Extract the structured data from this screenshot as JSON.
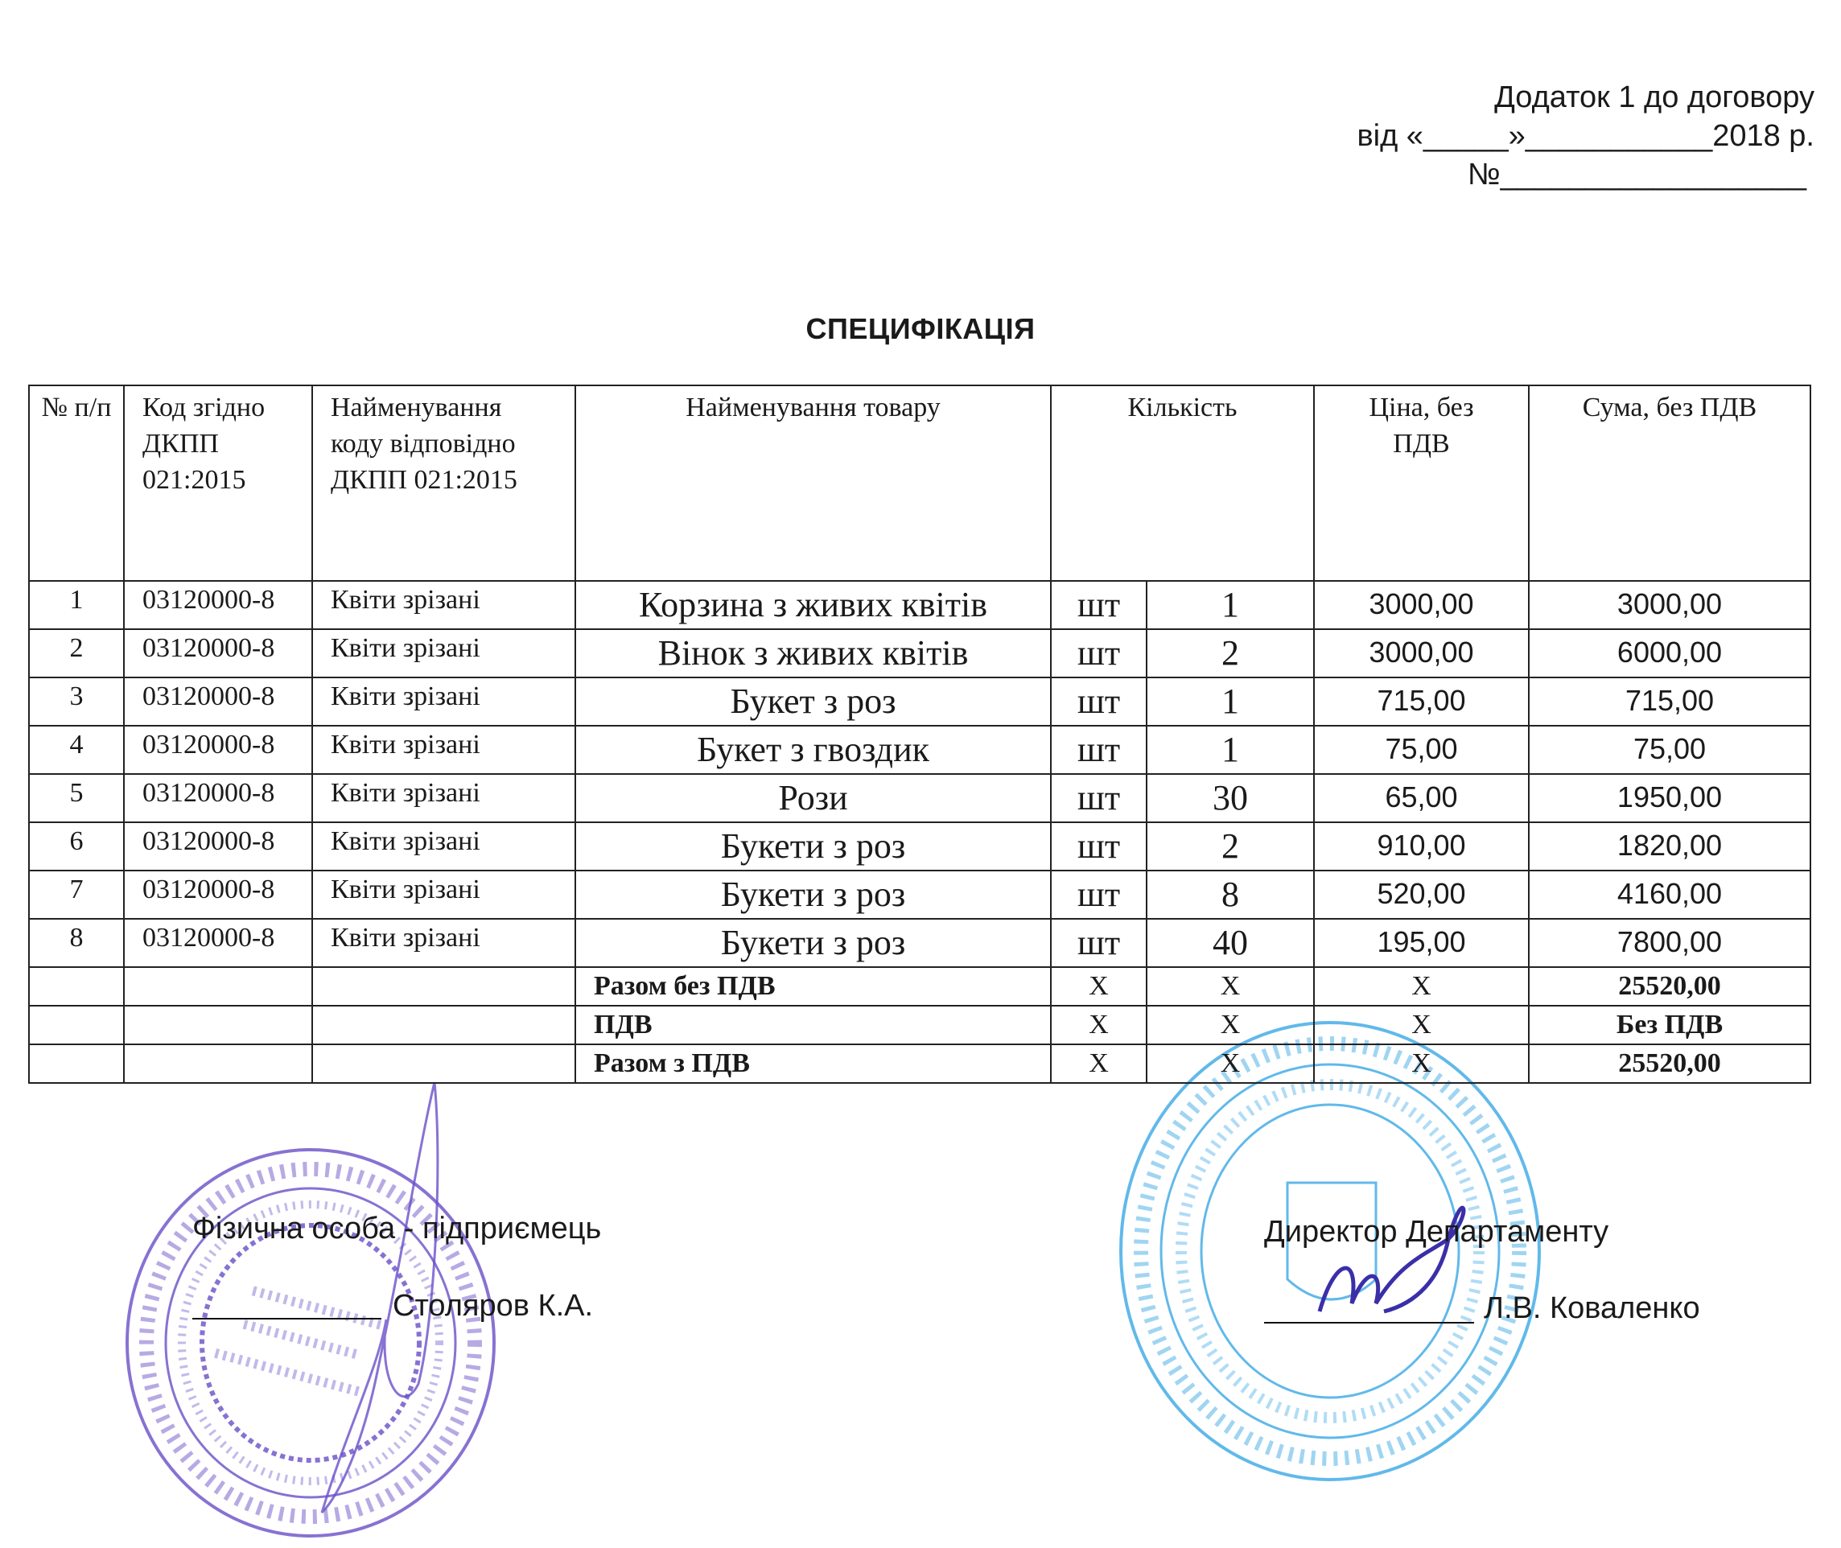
{
  "header": {
    "line1": "Додаток 1 до договору",
    "line2": "від «_____»___________2018 р.",
    "line3": "№__________________"
  },
  "title": "СПЕЦИФІКАЦІЯ",
  "table": {
    "columns": [
      "№ п/п",
      "Код згідно ДКПП 021:2015",
      "Найменування коду відповідно ДКПП 021:2015",
      "Найменування товару",
      "Кількість",
      "Ціна, без ПДВ",
      "Сума, без ПДВ"
    ],
    "rows": [
      {
        "n": "1",
        "code": "03120000-8",
        "code_name": "Квіти зрізані",
        "name": "Корзина з живих квітів",
        "unit": "шт",
        "qty": "1",
        "price": "3000,00",
        "sum": "3000,00"
      },
      {
        "n": "2",
        "code": "03120000-8",
        "code_name": "Квіти зрізані",
        "name": "Вінок з живих квітів",
        "unit": "шт",
        "qty": "2",
        "price": "3000,00",
        "sum": "6000,00"
      },
      {
        "n": "3",
        "code": "03120000-8",
        "code_name": "Квіти зрізані",
        "name": "Букет з роз",
        "unit": "шт",
        "qty": "1",
        "price": "715,00",
        "sum": "715,00"
      },
      {
        "n": "4",
        "code": "03120000-8",
        "code_name": "Квіти зрізані",
        "name": "Букет з гвоздик",
        "unit": "шт",
        "qty": "1",
        "price": "75,00",
        "sum": "75,00"
      },
      {
        "n": "5",
        "code": "03120000-8",
        "code_name": "Квіти зрізані",
        "name": "Рози",
        "unit": "шт",
        "qty": "30",
        "price": "65,00",
        "sum": "1950,00"
      },
      {
        "n": "6",
        "code": "03120000-8",
        "code_name": "Квіти зрізані",
        "name": "Букети з роз",
        "unit": "шт",
        "qty": "2",
        "price": "910,00",
        "sum": "1820,00"
      },
      {
        "n": "7",
        "code": "03120000-8",
        "code_name": "Квіти зрізані",
        "name": "Букети з роз",
        "unit": "шт",
        "qty": "8",
        "price": "520,00",
        "sum": "4160,00"
      },
      {
        "n": "8",
        "code": "03120000-8",
        "code_name": "Квіти зрізані",
        "name": "Букети з роз",
        "unit": "шт",
        "qty": "40",
        "price": "195,00",
        "sum": "7800,00"
      }
    ],
    "totals": [
      {
        "label": "Разом без ПДВ",
        "x1": "X",
        "x2": "X",
        "x3": "X",
        "value": "25520,00"
      },
      {
        "label": "ПДВ",
        "x1": "X",
        "x2": "X",
        "x3": "X",
        "value": "Без ПДВ"
      },
      {
        "label": "Разом з ПДВ",
        "x1": "X",
        "x2": "X",
        "x3": "X",
        "value": "25520,00"
      }
    ]
  },
  "signatures": {
    "left_role": "Фізична особа - підприємець",
    "left_name": "Столяров К.А.",
    "right_role": "Директор Департаменту",
    "right_name": "Л.В. Коваленко"
  },
  "stamps": {
    "left": {
      "outer": "* УКРАЇНА * м. ОДЕСА * Ідент. код 2364415994 *",
      "inner": "ФІЗИЧНА ОСОБА - ПІДПРИЄМЕЦЬ",
      "center": [
        "СТОЛЯРОВ",
        "Костянтин",
        "Анатолійович"
      ],
      "color": "#6a4fc8"
    },
    "right": {
      "outer": "МІНІСТЕРСТВО СОЦІАЛЬНОЇ ПОЛІТИКИ УКРАЇНИ * УКРАЇНА *",
      "inner": "ДЕПАРТАМЕНТ СОЦІАЛЬНОЇ ТА СІМЕЙНОЇ ПОЛІТИКИ ОДЕСЬКОЇ ОБЛАСНОЇ ДЕРЖАВНОЇ АДМІНІСТРАЦІЇ * 41147618 *",
      "color": "#3aa8e6"
    },
    "signature_color": "#3b2fa8"
  }
}
